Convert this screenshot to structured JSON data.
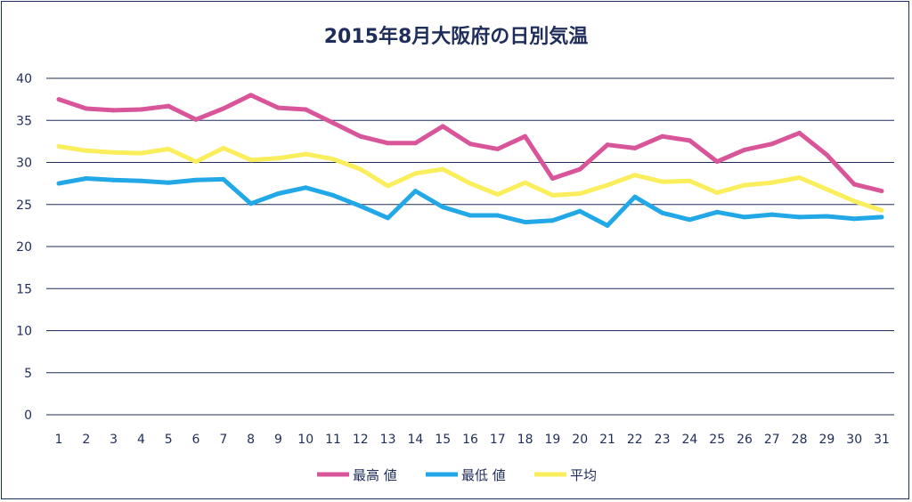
{
  "chart_data": {
    "type": "line",
    "title": "2015年8月大阪府の日別気温",
    "xlabel": "",
    "ylabel": "",
    "ylim": [
      0,
      40
    ],
    "yticks": [
      0,
      5,
      10,
      15,
      20,
      25,
      30,
      35,
      40
    ],
    "grid": true,
    "legend_position": "bottom",
    "categories": [
      "1",
      "2",
      "3",
      "4",
      "5",
      "6",
      "7",
      "8",
      "9",
      "10",
      "11",
      "12",
      "13",
      "14",
      "15",
      "16",
      "17",
      "18",
      "19",
      "20",
      "21",
      "22",
      "23",
      "24",
      "25",
      "26",
      "27",
      "28",
      "29",
      "30",
      "31"
    ],
    "series": [
      {
        "name": "最高 値",
        "color": "#d9559a",
        "values": [
          37.5,
          36.4,
          36.2,
          36.3,
          36.7,
          35.1,
          36.4,
          38.0,
          36.5,
          36.3,
          34.7,
          33.1,
          32.3,
          32.3,
          34.3,
          32.2,
          31.6,
          33.1,
          28.1,
          29.2,
          32.1,
          31.7,
          33.1,
          32.6,
          30.1,
          31.5,
          32.2,
          33.5,
          30.9,
          27.4,
          26.6
        ]
      },
      {
        "name": "最低 値",
        "color": "#22a8e6",
        "values": [
          27.5,
          28.1,
          27.9,
          27.8,
          27.6,
          27.9,
          28.0,
          25.1,
          26.3,
          27.0,
          26.1,
          24.8,
          23.4,
          26.6,
          24.7,
          23.7,
          23.7,
          22.9,
          23.1,
          24.2,
          22.5,
          25.9,
          24.0,
          23.2,
          24.1,
          23.5,
          23.8,
          23.5,
          23.6,
          23.3,
          23.5
        ]
      },
      {
        "name": "平均",
        "color": "#fbee5c",
        "values": [
          31.9,
          31.4,
          31.2,
          31.1,
          31.6,
          30.1,
          31.7,
          30.3,
          30.5,
          31.0,
          30.4,
          29.2,
          27.2,
          28.7,
          29.2,
          27.5,
          26.2,
          27.6,
          26.1,
          26.3,
          27.3,
          28.5,
          27.7,
          27.8,
          26.4,
          27.3,
          27.6,
          28.2,
          26.8,
          25.4,
          24.3
        ]
      }
    ]
  }
}
